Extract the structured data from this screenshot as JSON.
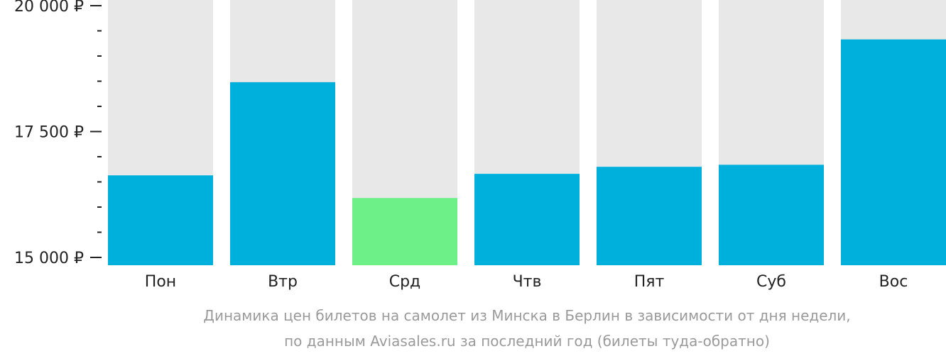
{
  "chart_data": {
    "type": "bar",
    "categories": [
      "Пон",
      "Втр",
      "Срд",
      "Чтв",
      "Пят",
      "Суб",
      "Вос"
    ],
    "values": [
      16630,
      18480,
      16180,
      16660,
      16800,
      16840,
      19330
    ],
    "ylim": [
      15000,
      20000
    ],
    "y_ticks": [
      {
        "value": 15000,
        "label": "15 000 ₽"
      },
      {
        "value": 17500,
        "label": "17 500 ₽"
      },
      {
        "value": 20000,
        "label": "20 000 ₽"
      }
    ],
    "y_minor_step": 500,
    "highlight_index": 2,
    "colors": {
      "bar": "#00b0dc",
      "highlight": "#6ef088",
      "bar_background": "#e8e8e8",
      "axis": "#222222",
      "caption": "#9a9a9a"
    },
    "title": "",
    "xlabel": "",
    "ylabel": "",
    "grid": false,
    "legend": "none"
  },
  "caption": {
    "line1": "Динамика цен билетов на самолет из Минска в Берлин в зависимости от дня недели,",
    "line2": "по данным Aviasales.ru за последний год (билеты туда-обратно)"
  }
}
